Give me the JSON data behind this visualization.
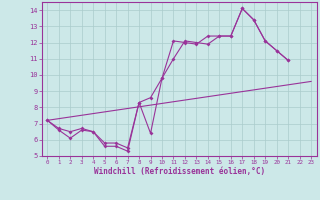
{
  "xlabel": "Windchill (Refroidissement éolien,°C)",
  "bg_color": "#cce8e8",
  "grid_color": "#aacccc",
  "line_color": "#993399",
  "x_ticks": [
    0,
    1,
    2,
    3,
    4,
    5,
    6,
    7,
    8,
    9,
    10,
    11,
    12,
    13,
    14,
    15,
    16,
    17,
    18,
    19,
    20,
    21,
    22,
    23
  ],
  "ylim": [
    5,
    14.5
  ],
  "xlim": [
    -0.5,
    23.5
  ],
  "yticks": [
    5,
    6,
    7,
    8,
    9,
    10,
    11,
    12,
    13,
    14
  ],
  "line1_y": [
    7.2,
    6.6,
    6.1,
    6.6,
    6.5,
    5.6,
    5.6,
    5.3,
    8.3,
    6.4,
    9.8,
    12.1,
    12.0,
    11.9,
    12.4,
    12.4,
    12.4,
    14.1,
    13.4,
    12.1,
    11.5,
    10.9,
    null,
    null
  ],
  "line2_y": [
    7.2,
    6.7,
    6.5,
    6.7,
    6.5,
    5.8,
    5.8,
    5.5,
    8.3,
    8.6,
    9.8,
    11.0,
    12.1,
    12.0,
    11.9,
    12.4,
    12.4,
    14.1,
    13.4,
    12.1,
    11.5,
    10.9,
    null,
    null
  ],
  "line3_x": [
    0,
    23
  ],
  "line3_y": [
    7.2,
    9.6
  ]
}
